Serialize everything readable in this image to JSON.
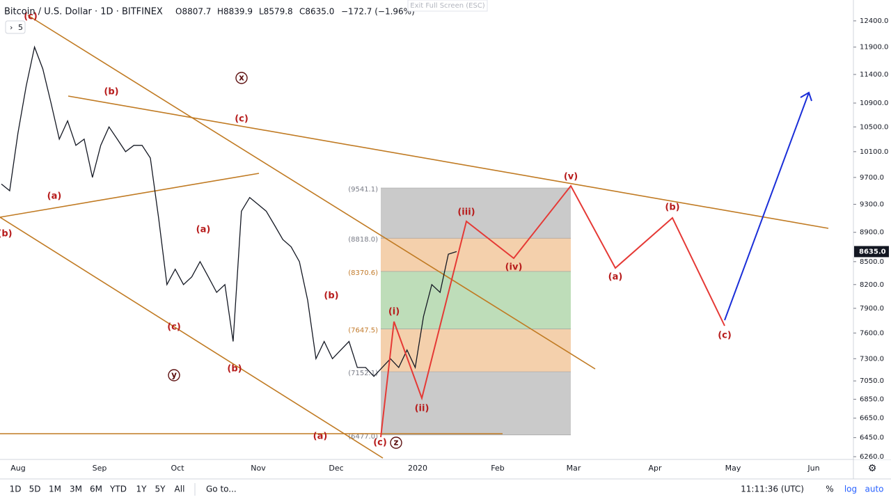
{
  "header": {
    "title": "Bitcoin / U.S. Dollar · 1D · BITFINEX",
    "ohlc": [
      "O8807.7",
      "H8839.9",
      "L8579.8",
      "C8635.0"
    ],
    "change": "−172.7 (−1.96%)",
    "interval_button": "5",
    "exit_button": "Exit Full Screen (ESC)"
  },
  "chart_data": {
    "type": "line",
    "color": "#131722",
    "log_scale": true,
    "values": [
      9600,
      9500,
      10400,
      11200,
      11900,
      11500,
      10900,
      10300,
      10600,
      10200,
      10300,
      9700,
      10200,
      10500,
      10300,
      10100,
      10200,
      10200,
      10000,
      9100,
      8200,
      8400,
      8200,
      8300,
      8500,
      8300,
      8100,
      8200,
      7500,
      9200,
      9400,
      9300,
      9200,
      9000,
      8800,
      8700,
      8500,
      8000,
      7300,
      7500,
      7300,
      7400,
      7500,
      7200,
      7200,
      7100,
      7200,
      7300,
      7200,
      7400,
      7200,
      7800,
      8200,
      8100,
      8600,
      8635
    ],
    "ylim": [
      6233,
      12812
    ],
    "yticks": [
      {
        "value": 12400,
        "label": "12400.0"
      },
      {
        "value": 11900,
        "label": "11900.0"
      },
      {
        "value": 11400,
        "label": "11400.0"
      },
      {
        "value": 10900,
        "label": "10900.0"
      },
      {
        "value": 10500,
        "label": "10500.0"
      },
      {
        "value": 10100,
        "label": "10100.0"
      },
      {
        "value": 9700,
        "label": "9700.0"
      },
      {
        "value": 9300,
        "label": "9300.0"
      },
      {
        "value": 8900,
        "label": "8900.0"
      },
      {
        "value": 8500,
        "label": "8500.0"
      },
      {
        "value": 8200,
        "label": "8200.0"
      },
      {
        "value": 7900,
        "label": "7900.0"
      },
      {
        "value": 7600,
        "label": "7600.0"
      },
      {
        "value": 7300,
        "label": "7300.0"
      },
      {
        "value": 7050,
        "label": "7050.0"
      },
      {
        "value": 6850,
        "label": "6850.0"
      },
      {
        "value": 6650,
        "label": "6650.0"
      },
      {
        "value": 6450,
        "label": "6450.0"
      },
      {
        "value": 6260,
        "label": "6260.0"
      }
    ],
    "x_labels": [
      "Aug",
      "Sep",
      "Oct",
      "Nov",
      "Dec",
      "2020",
      "Feb",
      "Mar",
      "Apr",
      "May",
      "Jun"
    ],
    "last_price": {
      "value": 8635,
      "label": "8635.0"
    },
    "fib_levels": [
      {
        "value": 9541.1,
        "label": "(9541.1)"
      },
      {
        "value": 8818.0,
        "label": "(8818.0)"
      },
      {
        "value": 8370.6,
        "label": "(8370.6)"
      },
      {
        "value": 7647.5,
        "label": "(7647.5)"
      },
      {
        "value": 7152.1,
        "label": "(7152.1)"
      },
      {
        "value": 6477.0,
        "label": "(6477.0)"
      }
    ],
    "wave_labels": [
      "(c)",
      "(a)",
      "(b)",
      "(b)",
      "(c)",
      "(a)",
      "(c)",
      "(b)",
      "(a)",
      "(b)",
      "(c)",
      "(i)",
      "(ii)",
      "(iii)",
      "(iv)",
      "(v)",
      "(a)",
      "(b)",
      "(c)"
    ],
    "circled_labels": [
      "x",
      "y",
      "z"
    ]
  },
  "toolbar": {
    "ranges": [
      "1D",
      "5D",
      "1M",
      "3M",
      "6M",
      "YTD",
      "1Y",
      "5Y",
      "All"
    ],
    "goto": "Go to...",
    "clock": "11:11:36 (UTC)",
    "scale_buttons": [
      "%",
      "log",
      "auto"
    ]
  }
}
